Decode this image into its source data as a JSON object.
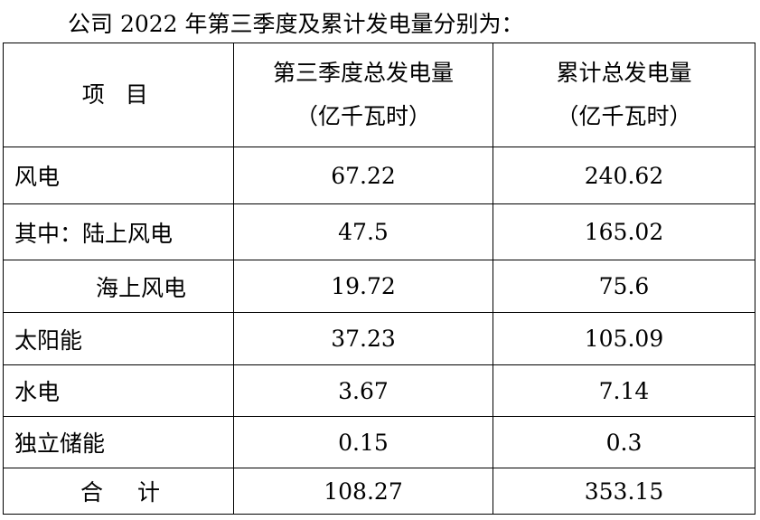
{
  "header": {
    "title": "公司 2022 年第三季度及累计发电量分别为："
  },
  "table": {
    "columns": [
      [
        "项 目"
      ],
      [
        "第三季度总发电量",
        "（亿千瓦时）"
      ],
      [
        "累计总发电量",
        "（亿千瓦时）"
      ]
    ],
    "rows": [
      [
        "风电",
        "67.22",
        "240.62"
      ],
      [
        "其中：陆上风电",
        "47.5",
        "165.02"
      ],
      [
        "海上风电",
        "19.72",
        "75.6"
      ],
      [
        "太阳能",
        "37.23",
        "105.09"
      ],
      [
        "水电",
        "3.67",
        "7.14"
      ],
      [
        "独立储能",
        "0.15",
        "0.3"
      ],
      [
        "合 计",
        "108.27",
        "353.15"
      ]
    ]
  }
}
